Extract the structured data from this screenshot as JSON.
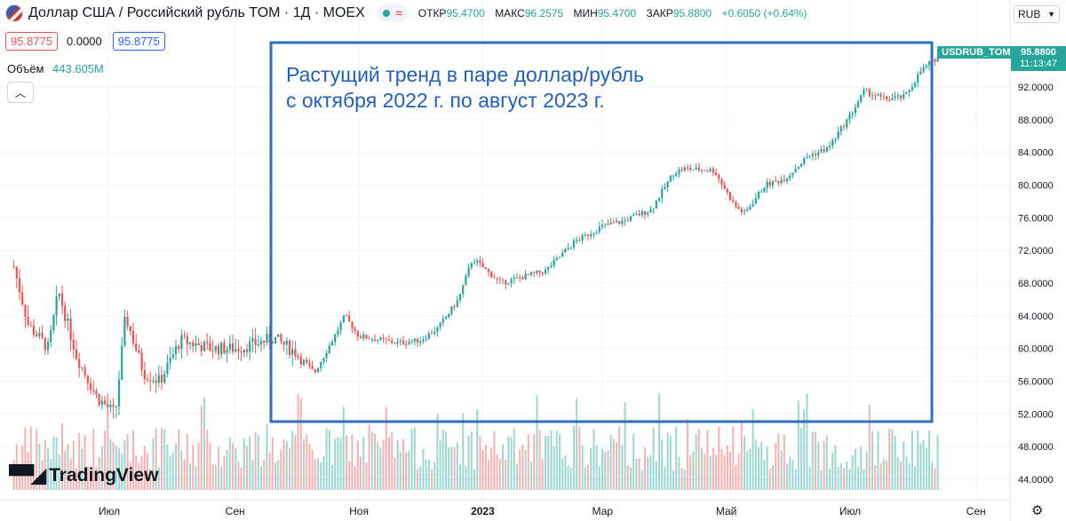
{
  "header": {
    "symbol": "Доллар США / Российский рубль TOM · 1Д · MOEX",
    "interval_icon": "wave-icon",
    "ohlc": [
      {
        "key": "ОТКР",
        "value": "95.4700"
      },
      {
        "key": "МАКС",
        "value": "96.2575"
      },
      {
        "key": "МИН",
        "value": "95.4700"
      },
      {
        "key": "ЗАКР",
        "value": "95.8800"
      }
    ],
    "change": "+0.6050 (+0.64%)",
    "bid": "95.8775",
    "spread": "0.0000",
    "ask": "95.8775"
  },
  "volume": {
    "label": "Объём",
    "value": "443.605M"
  },
  "currency": "RUB",
  "price_tag": {
    "symbol": "USDRUB_TOM",
    "price": "95.8800",
    "time": "11:13:47"
  },
  "annotation": {
    "line1": "Растущий тренд в паре доллар/рубль",
    "line2": "с октября 2022 г. по август 2023 г."
  },
  "logo": "TradingView",
  "colors": {
    "up": "#26a69a",
    "down": "#ef5350",
    "annotation": "#2962ff",
    "grid": "#f0f3fa"
  },
  "chart_data": {
    "type": "candlestick",
    "y_axis": {
      "ticks": [
        "44.0000",
        "48.0000",
        "52.0000",
        "56.0000",
        "60.0000",
        "64.0000",
        "68.0000",
        "72.0000",
        "76.0000",
        "80.0000",
        "84.0000",
        "88.0000",
        "92.0000"
      ]
    },
    "x_axis": {
      "ticks": [
        {
          "label": "Июл",
          "date": "2022-07-01"
        },
        {
          "label": "Сен",
          "date": "2022-09-01"
        },
        {
          "label": "Ноя",
          "date": "2022-11-01"
        },
        {
          "label": "2023",
          "date": "2023-01-01",
          "bold": true
        },
        {
          "label": "Мар",
          "date": "2023-03-01"
        },
        {
          "label": "Май",
          "date": "2023-05-01"
        },
        {
          "label": "Июл",
          "date": "2023-07-01"
        },
        {
          "label": "Сен",
          "date": "2023-09-01"
        }
      ]
    },
    "price_trend": [
      {
        "date": "2022-05-15",
        "close": 70
      },
      {
        "date": "2022-05-22",
        "close": 63
      },
      {
        "date": "2022-06-01",
        "close": 60
      },
      {
        "date": "2022-06-06",
        "close": 67
      },
      {
        "date": "2022-06-15",
        "close": 59
      },
      {
        "date": "2022-06-25",
        "close": 54
      },
      {
        "date": "2022-07-04",
        "close": 52
      },
      {
        "date": "2022-07-09",
        "close": 64
      },
      {
        "date": "2022-07-18",
        "close": 57
      },
      {
        "date": "2022-07-26",
        "close": 56
      },
      {
        "date": "2022-08-05",
        "close": 61
      },
      {
        "date": "2022-08-20",
        "close": 60
      },
      {
        "date": "2022-09-01",
        "close": 60
      },
      {
        "date": "2022-09-10",
        "close": 60.5
      },
      {
        "date": "2022-09-20",
        "close": 61.3
      },
      {
        "date": "2022-10-01",
        "close": 59.5
      },
      {
        "date": "2022-10-10",
        "close": 57
      },
      {
        "date": "2022-10-20",
        "close": 61.5
      },
      {
        "date": "2022-10-25",
        "close": 64
      },
      {
        "date": "2022-11-01",
        "close": 61.5
      },
      {
        "date": "2022-11-20",
        "close": 60.7
      },
      {
        "date": "2022-12-01",
        "close": 61
      },
      {
        "date": "2022-12-10",
        "close": 62.5
      },
      {
        "date": "2022-12-20",
        "close": 66
      },
      {
        "date": "2022-12-27",
        "close": 71
      },
      {
        "date": "2023-01-10",
        "close": 68
      },
      {
        "date": "2023-01-20",
        "close": 68.7
      },
      {
        "date": "2023-02-01",
        "close": 69.5
      },
      {
        "date": "2023-02-15",
        "close": 73
      },
      {
        "date": "2023-03-01",
        "close": 75
      },
      {
        "date": "2023-03-10",
        "close": 75.5
      },
      {
        "date": "2023-03-25",
        "close": 77
      },
      {
        "date": "2023-04-05",
        "close": 81.5
      },
      {
        "date": "2023-04-10",
        "close": 82
      },
      {
        "date": "2023-04-25",
        "close": 81.8
      },
      {
        "date": "2023-05-05",
        "close": 77.5
      },
      {
        "date": "2023-05-10",
        "close": 76.5
      },
      {
        "date": "2023-05-20",
        "close": 80
      },
      {
        "date": "2023-05-30",
        "close": 80.8
      },
      {
        "date": "2023-06-10",
        "close": 83.5
      },
      {
        "date": "2023-06-20",
        "close": 84.5
      },
      {
        "date": "2023-07-01",
        "close": 88.5
      },
      {
        "date": "2023-07-08",
        "close": 91.5
      },
      {
        "date": "2023-07-18",
        "close": 90.5
      },
      {
        "date": "2023-07-28",
        "close": 90.8
      },
      {
        "date": "2023-08-05",
        "close": 94
      },
      {
        "date": "2023-08-14",
        "close": 95.88
      }
    ],
    "volume_level": "44.0000–50.0000"
  }
}
